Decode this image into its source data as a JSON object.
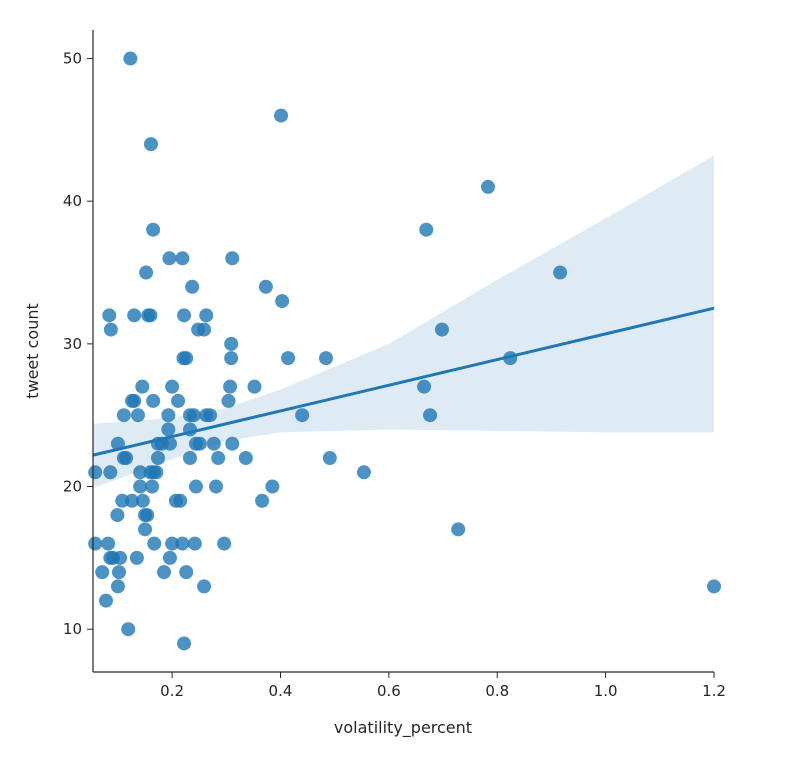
{
  "chart_data": {
    "type": "scatter",
    "title": "",
    "xlabel": "volatility_percent",
    "ylabel": "tweet count",
    "xlim": [
      0.054,
      1.2
    ],
    "ylim": [
      7,
      52
    ],
    "xticks": [
      0.2,
      0.4,
      0.6,
      0.8,
      1.0,
      1.2
    ],
    "xtick_labels": [
      "0.2",
      "0.4",
      "0.6",
      "0.8",
      "1.0",
      "1.2"
    ],
    "yticks": [
      10,
      20,
      30,
      40,
      50
    ],
    "ytick_labels": [
      "10",
      "20",
      "30",
      "40",
      "50"
    ],
    "grid": false,
    "colors": {
      "points": "#1f77b4",
      "line": "#1f77b4",
      "band": "#1f77b4"
    },
    "points": [
      [
        0.123,
        50
      ],
      [
        0.401,
        46
      ],
      [
        0.161,
        44
      ],
      [
        0.783,
        41
      ],
      [
        0.165,
        38
      ],
      [
        0.669,
        38
      ],
      [
        0.195,
        36
      ],
      [
        0.219,
        36
      ],
      [
        0.311,
        36
      ],
      [
        0.916,
        35
      ],
      [
        0.152,
        35
      ],
      [
        0.237,
        34
      ],
      [
        0.373,
        34
      ],
      [
        0.403,
        33
      ],
      [
        0.084,
        32
      ],
      [
        0.13,
        32
      ],
      [
        0.156,
        32
      ],
      [
        0.16,
        32
      ],
      [
        0.222,
        32
      ],
      [
        0.263,
        32
      ],
      [
        0.087,
        31
      ],
      [
        0.248,
        31
      ],
      [
        0.259,
        31
      ],
      [
        0.698,
        31
      ],
      [
        0.309,
        30
      ],
      [
        0.221,
        29
      ],
      [
        0.226,
        29
      ],
      [
        0.309,
        29
      ],
      [
        0.414,
        29
      ],
      [
        0.484,
        29
      ],
      [
        0.824,
        29
      ],
      [
        0.145,
        27
      ],
      [
        0.2,
        27
      ],
      [
        0.307,
        27
      ],
      [
        0.352,
        27
      ],
      [
        0.665,
        27
      ],
      [
        0.126,
        26
      ],
      [
        0.13,
        26
      ],
      [
        0.165,
        26
      ],
      [
        0.211,
        26
      ],
      [
        0.304,
        26
      ],
      [
        0.111,
        25
      ],
      [
        0.137,
        25
      ],
      [
        0.193,
        25
      ],
      [
        0.233,
        25
      ],
      [
        0.24,
        25
      ],
      [
        0.263,
        25
      ],
      [
        0.27,
        25
      ],
      [
        0.44,
        25
      ],
      [
        0.676,
        25
      ],
      [
        0.193,
        24
      ],
      [
        0.233,
        24
      ],
      [
        0.1,
        23
      ],
      [
        0.174,
        23
      ],
      [
        0.181,
        23
      ],
      [
        0.196,
        23
      ],
      [
        0.244,
        23
      ],
      [
        0.251,
        23
      ],
      [
        0.277,
        23
      ],
      [
        0.311,
        23
      ],
      [
        0.111,
        22
      ],
      [
        0.115,
        22
      ],
      [
        0.174,
        22
      ],
      [
        0.233,
        22
      ],
      [
        0.285,
        22
      ],
      [
        0.336,
        22
      ],
      [
        0.491,
        22
      ],
      [
        0.058,
        21
      ],
      [
        0.086,
        21
      ],
      [
        0.141,
        21
      ],
      [
        0.16,
        21
      ],
      [
        0.166,
        21
      ],
      [
        0.171,
        21
      ],
      [
        0.554,
        21
      ],
      [
        0.141,
        20
      ],
      [
        0.163,
        20
      ],
      [
        0.244,
        20
      ],
      [
        0.281,
        20
      ],
      [
        0.385,
        20
      ],
      [
        0.108,
        19
      ],
      [
        0.126,
        19
      ],
      [
        0.146,
        19
      ],
      [
        0.207,
        19
      ],
      [
        0.215,
        19
      ],
      [
        0.366,
        19
      ],
      [
        0.099,
        18
      ],
      [
        0.15,
        18
      ],
      [
        0.154,
        18
      ],
      [
        0.15,
        17
      ],
      [
        0.728,
        17
      ],
      [
        0.058,
        16
      ],
      [
        0.082,
        16
      ],
      [
        0.167,
        16
      ],
      [
        0.2,
        16
      ],
      [
        0.219,
        16
      ],
      [
        0.242,
        16
      ],
      [
        0.296,
        16
      ],
      [
        0.086,
        15
      ],
      [
        0.091,
        15
      ],
      [
        0.104,
        15
      ],
      [
        0.135,
        15
      ],
      [
        0.196,
        15
      ],
      [
        0.071,
        14
      ],
      [
        0.102,
        14
      ],
      [
        0.185,
        14
      ],
      [
        0.226,
        14
      ],
      [
        0.1,
        13
      ],
      [
        0.259,
        13
      ],
      [
        1.2,
        13
      ],
      [
        0.078,
        12
      ],
      [
        0.119,
        10
      ],
      [
        0.222,
        9
      ]
    ],
    "regression": {
      "x": [
        0.054,
        0.2,
        0.3,
        0.4,
        0.6,
        0.8,
        1.0,
        1.2
      ],
      "y": [
        22.2,
        23.5,
        24.4,
        25.3,
        27.1,
        28.9,
        30.7,
        32.5
      ],
      "ci_lower": [
        19.9,
        21.9,
        23.2,
        23.8,
        24.0,
        23.9,
        23.8,
        23.8
      ],
      "ci_upper": [
        24.4,
        24.8,
        25.5,
        26.8,
        30.0,
        34.5,
        38.8,
        43.2
      ]
    }
  }
}
